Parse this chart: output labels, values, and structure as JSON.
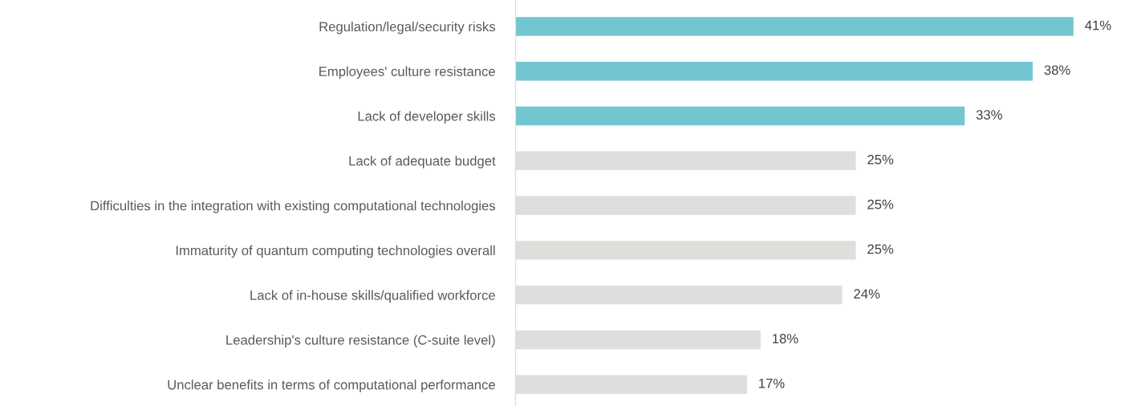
{
  "chart_data": {
    "type": "bar",
    "orientation": "horizontal",
    "categories": [
      "Regulation/legal/security risks",
      "Employees' culture resistance",
      "Lack of developer skills",
      "Lack of adequate budget",
      "Difficulties in the integration with existing computational technologies",
      "Immaturity of quantum computing technologies overall",
      "Lack of in-house skills/qualified workforce",
      "Leadership's culture resistance (C-suite level)",
      "Unclear benefits in terms of computational performance"
    ],
    "values": [
      41,
      38,
      33,
      25,
      25,
      25,
      24,
      18,
      17
    ],
    "value_labels": [
      "41%",
      "38%",
      "33%",
      "25%",
      "25%",
      "25%",
      "24%",
      "18%",
      "17%"
    ],
    "colors": [
      "#72c6d2",
      "#72c6d2",
      "#72c6d2",
      "#e0dedc",
      "#e0dedc",
      "#e0dedc",
      "#e0dedc",
      "#e0dedc",
      "#e0dedc"
    ],
    "grid": false,
    "legend": false,
    "tick_labels": "y"
  }
}
